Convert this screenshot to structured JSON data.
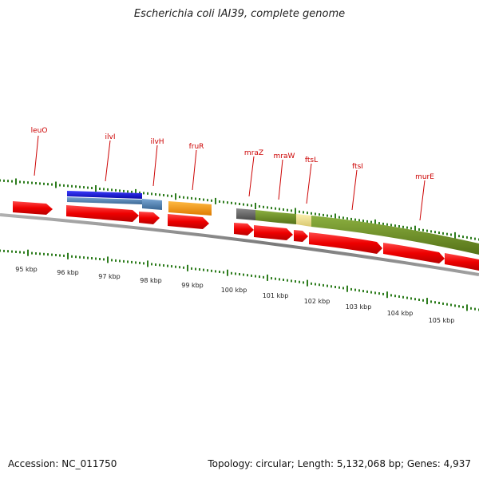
{
  "title": "Escherichia coli IAI39, complete genome",
  "footer": {
    "accession": "Accession: NC_011750",
    "summary": "Topology: circular; Length: 5,132,068 bp; Genes: 4,937"
  },
  "scale": {
    "unit": "kbp",
    "ticks": [
      "95 kbp",
      "96 kbp",
      "97 kbp",
      "98 kbp",
      "99 kbp",
      "100 kbp",
      "101 kbp",
      "102 kbp",
      "103 kbp",
      "104 kbp",
      "105 kbp"
    ]
  },
  "gene_labels": [
    "leuO",
    "ilvI",
    "ilvH",
    "fruR",
    "mraZ",
    "mraW",
    "ftsL",
    "ftsI",
    "murE"
  ],
  "colors": {
    "label_red": "#cc0000",
    "gene_arrow_red": "#ee0000",
    "backbone_gray": "#888888",
    "tick_green": "#2e7d1e",
    "ilvI_blue": "#1010dd",
    "ilvI_steel": "#4b7fb5",
    "ilvH_steel": "#4b7fb5",
    "fruR_orange": "#ff9900",
    "mraZ_gray": "#606060",
    "operon_olive": "#6b8e23",
    "ftsL_yellow": "#eedd88"
  }
}
